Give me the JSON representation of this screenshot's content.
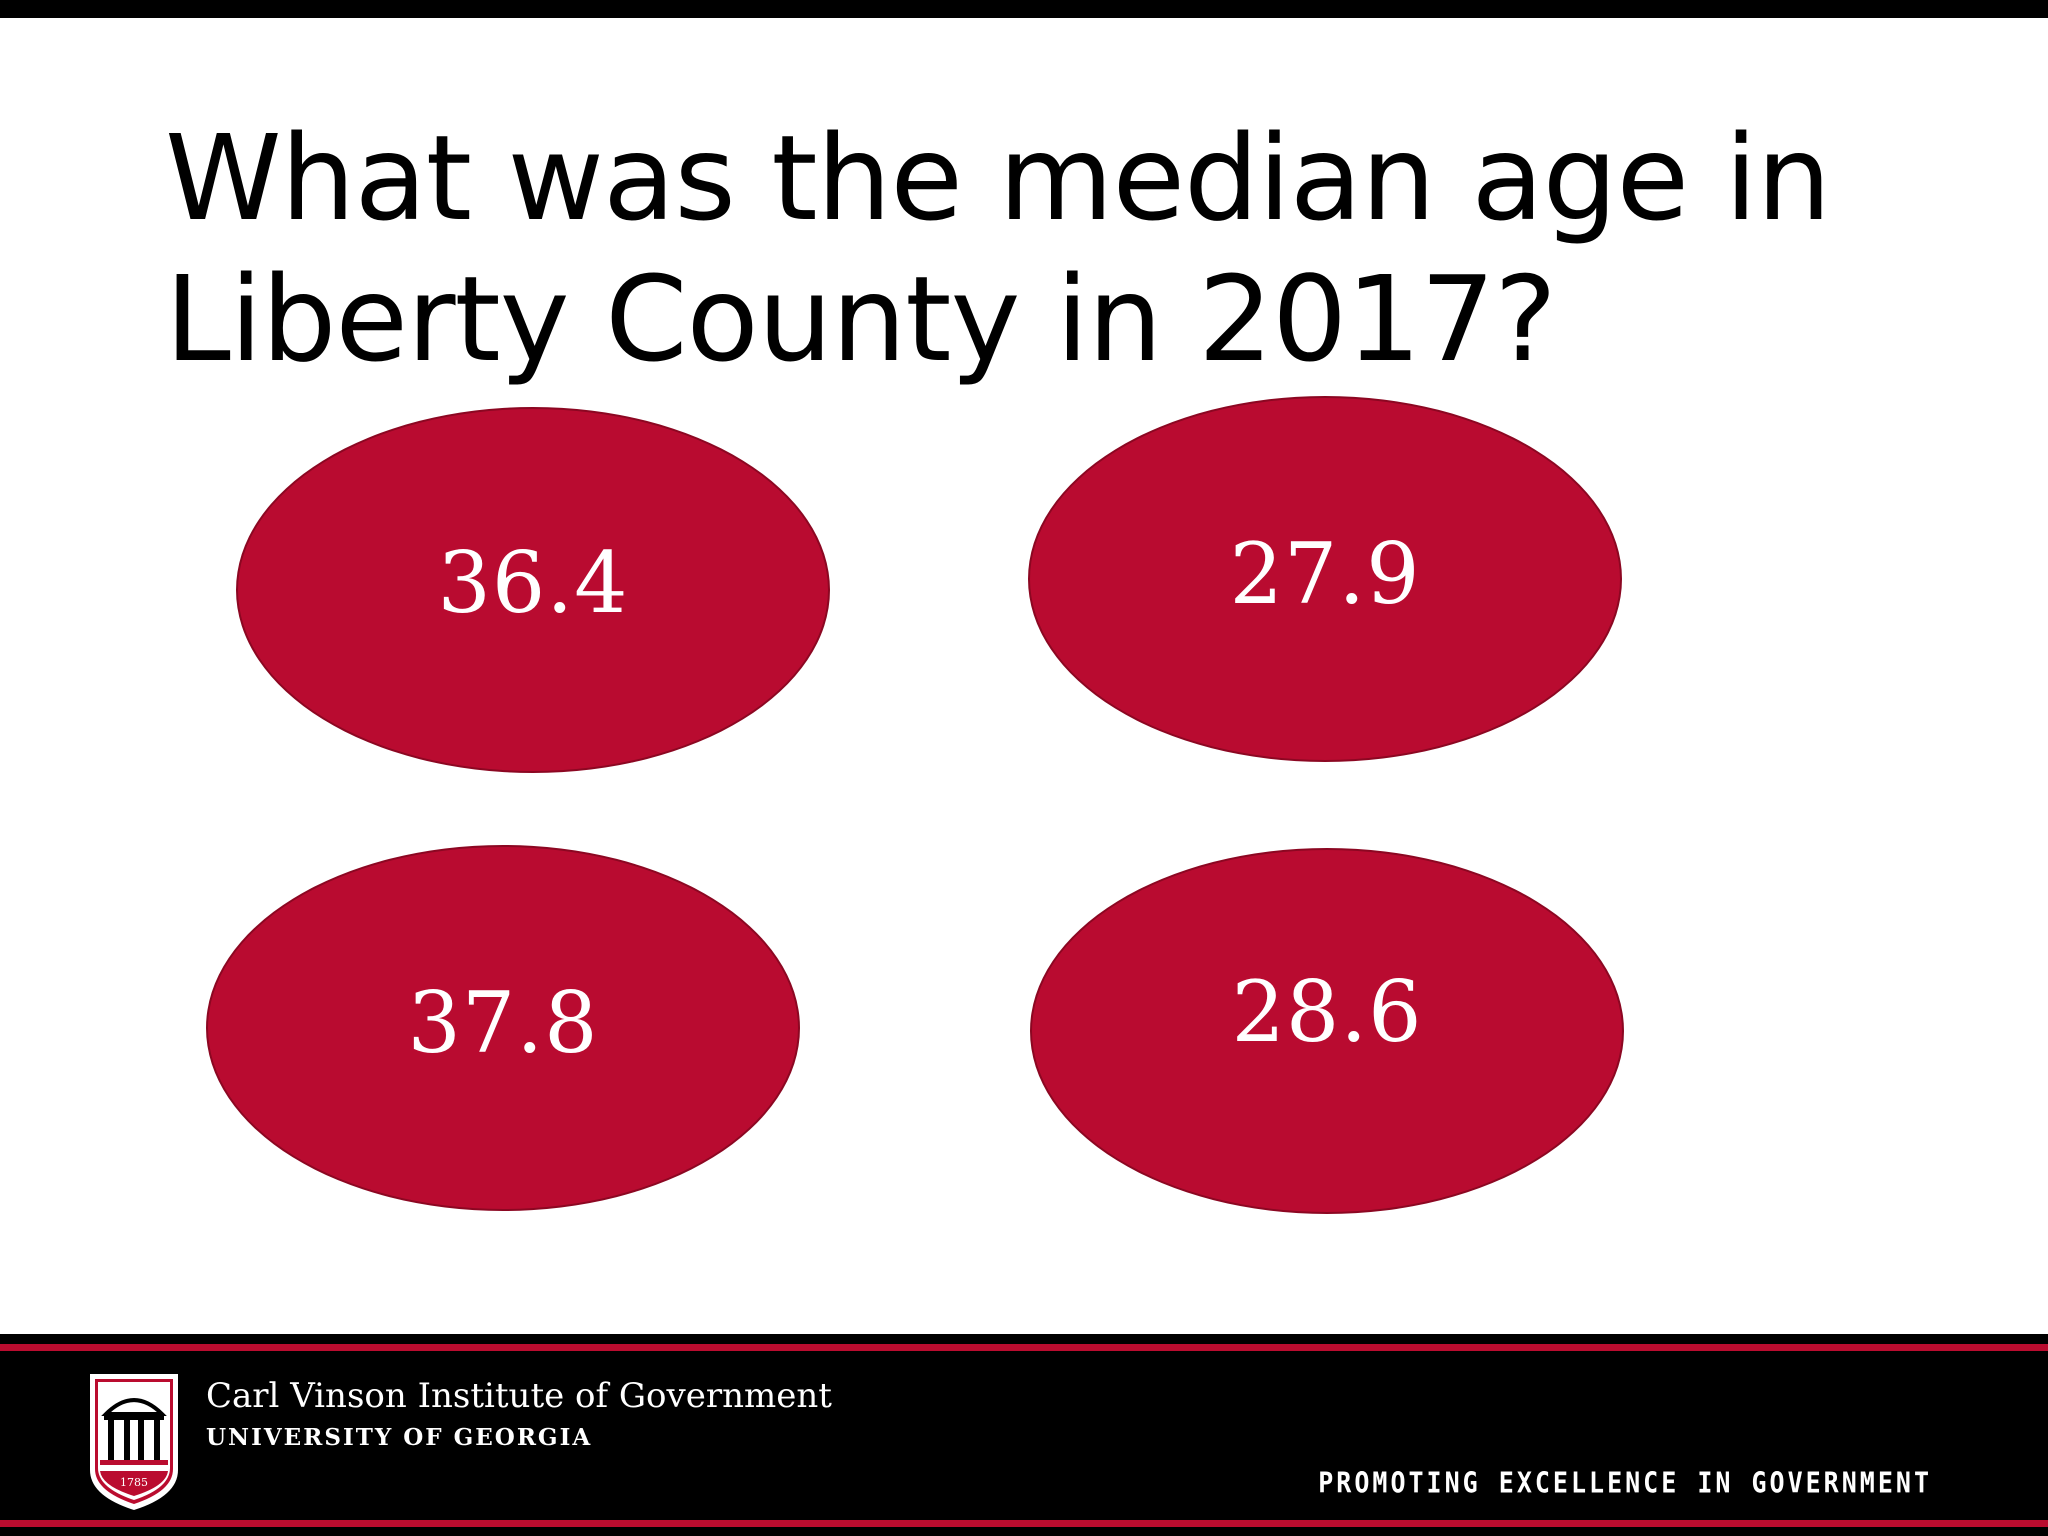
{
  "slide": {
    "title_lines": [
      "What was the median age in",
      "Liberty County in 2017?"
    ],
    "options": [
      {
        "label": "36.4"
      },
      {
        "label": "27.9"
      },
      {
        "label": "37.8"
      },
      {
        "label": "28.6"
      }
    ],
    "accent_color": "#b90b30"
  },
  "footer": {
    "org_name": "Carl Vinson Institute of Government",
    "org_subtitle": "UNIVERSITY OF GEORGIA",
    "logo_year": "1785",
    "tagline": "PROMOTING EXCELLENCE IN GOVERNMENT",
    "stripe_color": "#ba0c2f",
    "logo_icon": "uga-arch-shield-icon"
  }
}
